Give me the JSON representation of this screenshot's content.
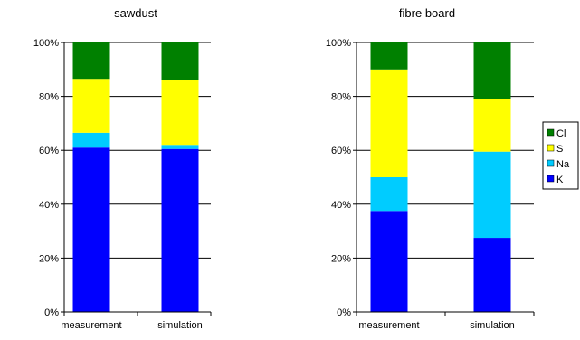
{
  "chart_data": [
    {
      "type": "bar",
      "stacked": true,
      "title": "sawdust",
      "categories": [
        "measurement",
        "simulation"
      ],
      "ylim": [
        0,
        100
      ],
      "yticks": [
        "0%",
        "20%",
        "40%",
        "60%",
        "80%",
        "100%"
      ],
      "grid": true,
      "series": [
        {
          "name": "K",
          "color": "#0000ff",
          "values": [
            61,
            60.5
          ]
        },
        {
          "name": "Na",
          "color": "#00ccff",
          "values": [
            5.5,
            1.5
          ]
        },
        {
          "name": "S",
          "color": "#ffff00",
          "values": [
            20,
            24
          ]
        },
        {
          "name": "Cl",
          "color": "#008000",
          "values": [
            13.5,
            14
          ]
        }
      ]
    },
    {
      "type": "bar",
      "stacked": true,
      "title": "fibre board",
      "categories": [
        "measurement",
        "simulation"
      ],
      "ylim": [
        0,
        100
      ],
      "yticks": [
        "0%",
        "20%",
        "40%",
        "60%",
        "80%",
        "100%"
      ],
      "grid": true,
      "series": [
        {
          "name": "K",
          "color": "#0000ff",
          "values": [
            37.5,
            27.5
          ]
        },
        {
          "name": "Na",
          "color": "#00ccff",
          "values": [
            12.5,
            32
          ]
        },
        {
          "name": "S",
          "color": "#ffff00",
          "values": [
            40,
            19.5
          ]
        },
        {
          "name": "Cl",
          "color": "#008000",
          "values": [
            10,
            21
          ]
        }
      ]
    }
  ],
  "legend": {
    "placement": "right",
    "items": [
      {
        "label": "Cl",
        "color": "#008000"
      },
      {
        "label": "S",
        "color": "#ffff00"
      },
      {
        "label": "Na",
        "color": "#00ccff"
      },
      {
        "label": "K",
        "color": "#0000ff"
      }
    ]
  }
}
